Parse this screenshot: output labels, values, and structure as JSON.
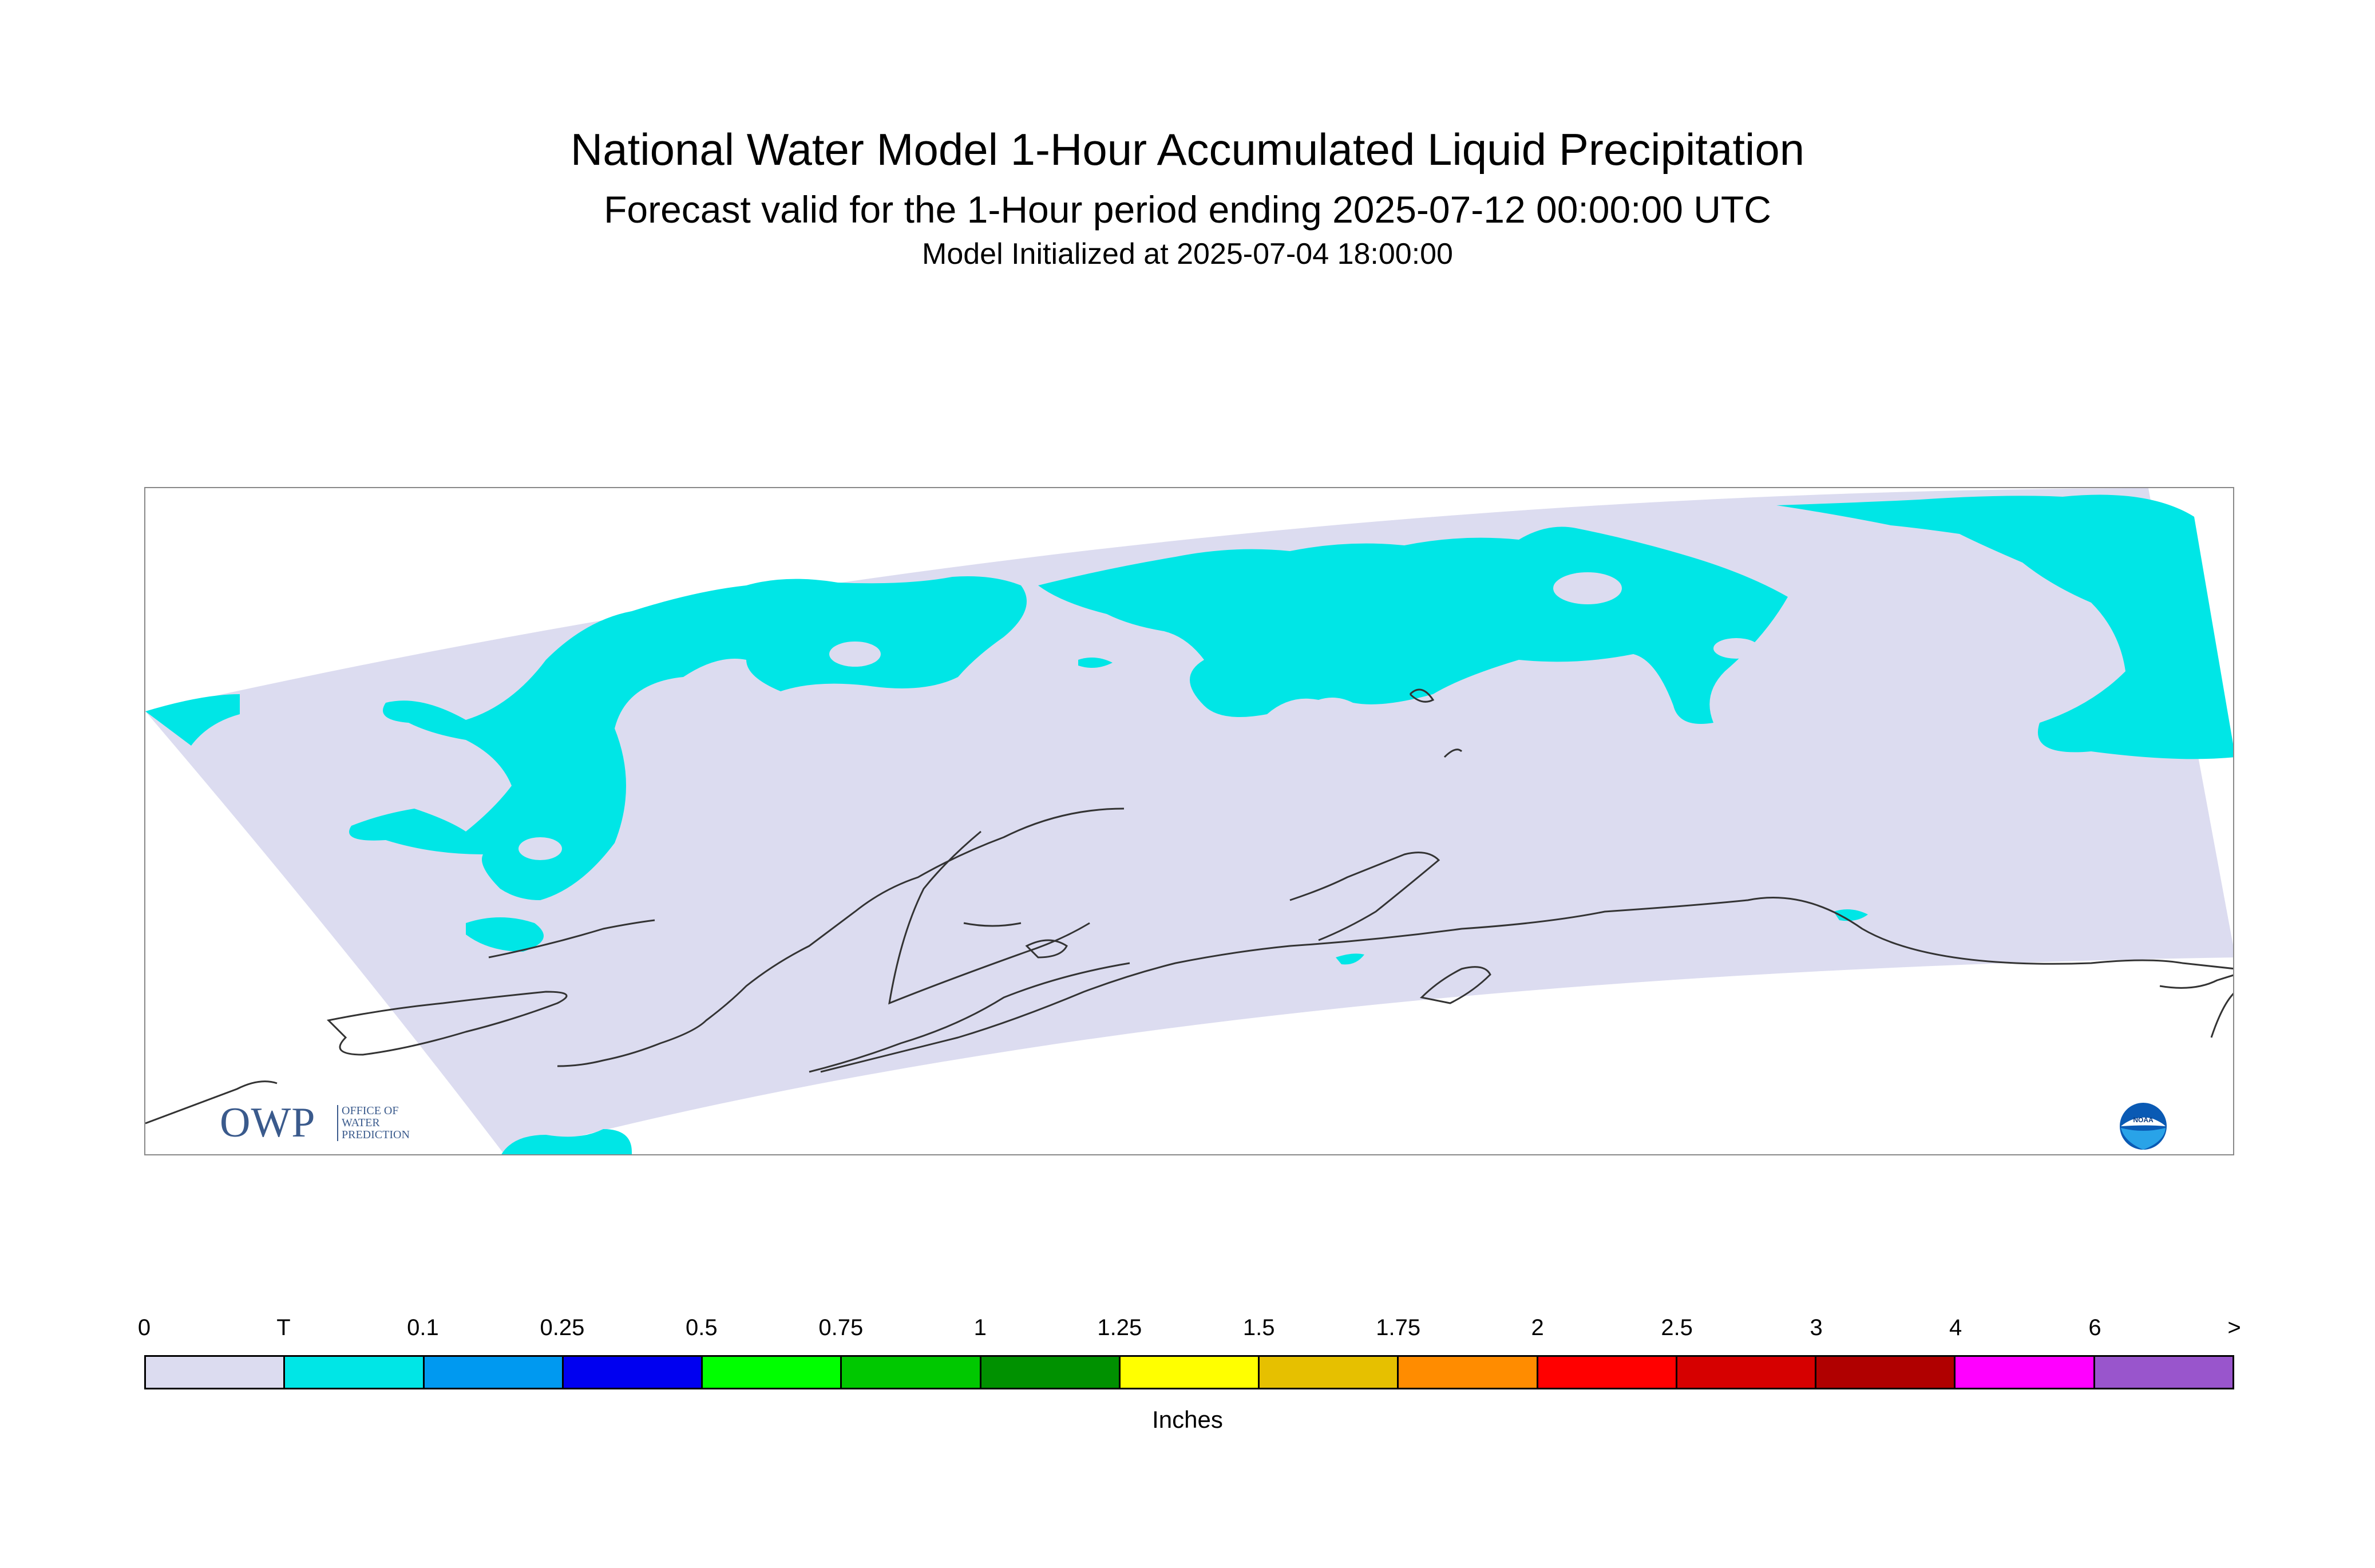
{
  "title": "National Water Model 1-Hour Accumulated Liquid Precipitation",
  "subtitle": "Forecast valid for the 1-Hour period ending 2025-07-12 00:00:00 UTC",
  "init_line": "Model Initialized at 2025-07-04 18:00:00",
  "colors": {
    "domain_fill": "#dcdcf0",
    "precip_trace": "#00e6e6",
    "coastline": "#333333",
    "frame": "#888888"
  },
  "logos": {
    "owp": {
      "letters": "OWP",
      "words": [
        "OFFICE OF",
        "WATER",
        "PREDICTION"
      ],
      "icon": "owp-logo"
    },
    "noaa": {
      "text": "NOAA",
      "icon": "noaa-logo"
    }
  },
  "legend": {
    "units": "Inches",
    "tick_labels": [
      "0",
      "T",
      "0.1",
      "0.25",
      "0.5",
      "0.75",
      "1",
      "1.25",
      "1.5",
      "1.75",
      "2",
      "2.5",
      "3",
      "4",
      "6",
      ">"
    ],
    "colors": [
      "#dcdcf0",
      "#00e6e6",
      "#0099f0",
      "#0000f0",
      "#00ff00",
      "#00c800",
      "#009100",
      "#ffff00",
      "#e6c000",
      "#ff8c00",
      "#ff0000",
      "#d60000",
      "#b00000",
      "#ff00ff",
      "#9955cc"
    ]
  }
}
